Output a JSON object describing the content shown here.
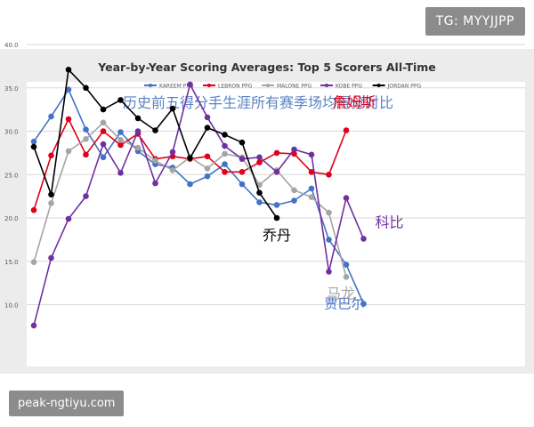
{
  "overlays": {
    "watermark_top": "TG: MYYJJPP",
    "watermark_bottom": "peak-ngtiyu.com"
  },
  "chart_data": {
    "type": "line",
    "title": "Year-by-Year Scoring Averages: Top 5 Scorers All-Time",
    "subtitle": "历史前五得分手生涯所有赛季场均得分对比",
    "xlabel": "",
    "ylabel": "",
    "ylim": [
      5,
      40
    ],
    "yticks": [
      "10.0",
      "15.0",
      "20.0",
      "25.0",
      "30.0",
      "35.0",
      "40.0"
    ],
    "grid": true,
    "legend_position": "top",
    "series": [
      {
        "name": "KAREEM PPG",
        "color": "#4472c4",
        "values": [
          28.8,
          31.7,
          34.8,
          30.2,
          27.0,
          29.9,
          27.7,
          26.2,
          25.8,
          23.9,
          24.8,
          26.2,
          23.9,
          21.8,
          21.5,
          22.0,
          23.4,
          17.5,
          14.6,
          10.1
        ],
        "end_label": "贾巴尔"
      },
      {
        "name": "LEBRON PPG",
        "color": "#e0001b",
        "values": [
          20.9,
          27.2,
          31.4,
          27.3,
          30.0,
          28.4,
          29.7,
          26.8,
          27.1,
          26.8,
          27.1,
          25.3,
          25.3,
          26.4,
          27.5,
          27.4,
          25.3,
          25.0,
          30.1
        ],
        "end_label": "詹姆斯"
      },
      {
        "name": "MALONE PPG",
        "color": "#a5a5a5",
        "values": [
          14.9,
          21.7,
          27.7,
          29.1,
          31.0,
          29.0,
          28.1,
          26.6,
          25.5,
          27.0,
          25.7,
          27.4,
          27.0,
          23.8,
          25.5,
          23.2,
          22.4,
          20.6,
          13.2
        ],
        "end_label": "马龙"
      },
      {
        "name": "KOBE PPG",
        "color": "#7030a0",
        "values": [
          7.6,
          15.4,
          19.9,
          22.5,
          28.5,
          25.2,
          30.0,
          24.0,
          27.6,
          35.4,
          31.6,
          28.3,
          26.8,
          27.0,
          25.3,
          27.9,
          27.3,
          13.8,
          22.3,
          17.6
        ],
        "end_label": "科比"
      },
      {
        "name": "JORDAN PPG",
        "color": "#000000",
        "values": [
          28.2,
          22.7,
          37.1,
          35.0,
          32.5,
          33.6,
          31.5,
          30.1,
          32.6,
          26.9,
          30.4,
          29.6,
          28.7,
          22.9,
          20.0
        ],
        "end_label": "乔丹"
      }
    ]
  }
}
